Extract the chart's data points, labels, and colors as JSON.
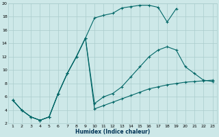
{
  "xlabel": "Humidex (Indice chaleur)",
  "xlim": [
    0.5,
    23.5
  ],
  "ylim": [
    2,
    20
  ],
  "xticks": [
    1,
    2,
    3,
    4,
    5,
    6,
    7,
    8,
    9,
    10,
    11,
    12,
    13,
    14,
    15,
    16,
    17,
    18,
    19,
    20,
    21,
    22,
    23
  ],
  "yticks": [
    2,
    4,
    6,
    8,
    10,
    12,
    14,
    16,
    18,
    20
  ],
  "bg_color": "#cde8e8",
  "grid_color": "#aacccc",
  "line_color": "#006666",
  "line1_x": [
    1,
    2,
    3,
    4,
    5,
    6,
    7,
    8,
    9,
    10,
    11,
    12,
    13,
    14,
    15,
    16,
    17,
    18,
    19
  ],
  "line1_y": [
    5.5,
    4.0,
    3.0,
    2.5,
    3.0,
    6.5,
    9.5,
    12.0,
    14.8,
    17.8,
    18.2,
    18.5,
    19.3,
    19.5,
    19.7,
    19.7,
    19.4,
    17.2,
    19.2
  ],
  "line2_x": [
    1,
    2,
    3,
    4,
    5,
    6,
    7,
    8,
    9,
    10,
    11,
    12,
    13,
    14,
    15,
    16,
    17,
    18,
    19,
    20,
    21,
    22,
    23
  ],
  "line2_y": [
    5.5,
    4.0,
    3.0,
    2.5,
    3.0,
    6.5,
    9.5,
    12.0,
    14.8,
    5.0,
    6.0,
    6.5,
    7.5,
    9.0,
    10.5,
    12.0,
    13.0,
    13.5,
    13.0,
    10.5,
    9.5,
    8.5,
    8.3
  ],
  "line3_x": [
    1,
    2,
    3,
    4,
    5,
    6,
    7,
    8,
    9,
    10,
    11,
    12,
    13,
    14,
    15,
    16,
    17,
    18,
    19,
    20,
    21,
    22,
    23
  ],
  "line3_y": [
    5.5,
    4.0,
    3.0,
    2.5,
    3.0,
    6.5,
    9.5,
    12.0,
    14.8,
    4.2,
    4.7,
    5.2,
    5.7,
    6.2,
    6.7,
    7.2,
    7.5,
    7.8,
    8.0,
    8.2,
    8.3,
    8.4,
    8.5
  ]
}
